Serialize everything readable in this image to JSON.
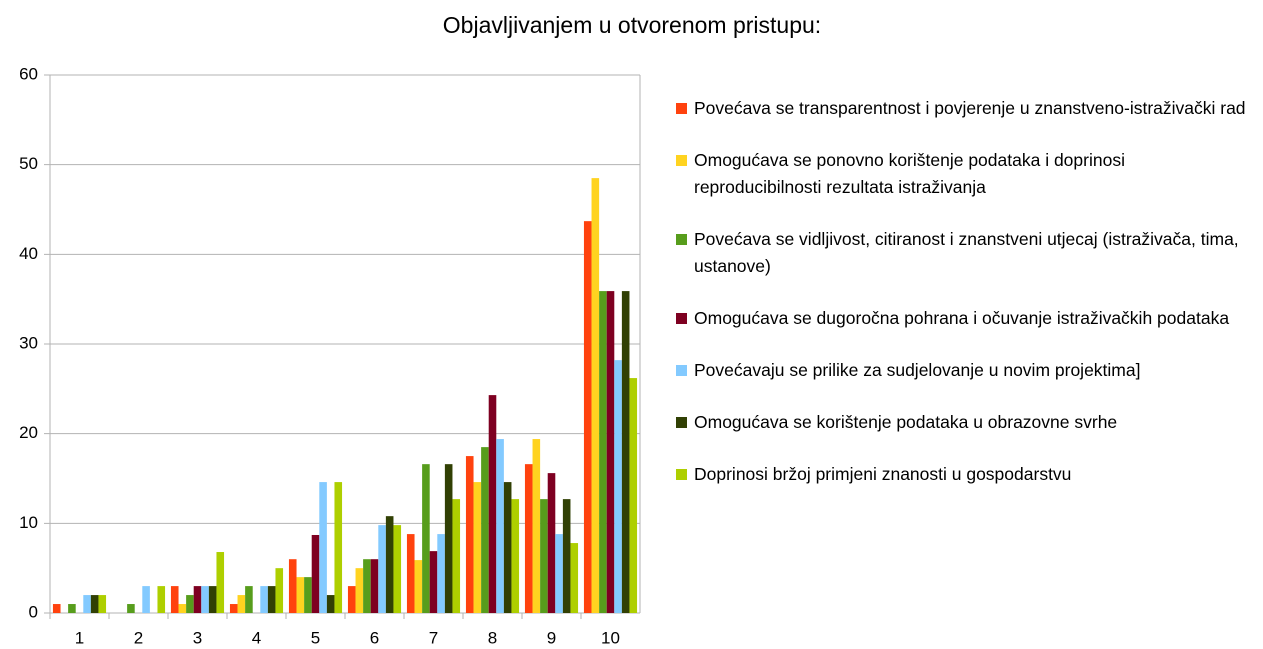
{
  "chart_data": {
    "type": "bar",
    "title": "Objavljivanjem u otvorenom pristupu:",
    "categories": [
      "1",
      "2",
      "3",
      "4",
      "5",
      "6",
      "7",
      "8",
      "9",
      "10"
    ],
    "ylim": [
      0,
      60
    ],
    "yticks": [
      0,
      10,
      20,
      30,
      40,
      50,
      60
    ],
    "grid": true,
    "legend": "right",
    "series": [
      {
        "name": "Povećava se transparentnost i povjerenje u znanstveno-istraživački rad",
        "color": "#ff420e",
        "values": [
          1,
          0,
          3,
          1,
          6,
          3,
          8.8,
          17.5,
          16.6,
          43.7
        ]
      },
      {
        "name": "Omogućava se ponovno korištenje podataka i doprinosi reproducibilnosti rezultata istraživanja",
        "color": "#ffd320",
        "values": [
          0,
          0,
          1,
          2,
          4,
          5,
          5.9,
          14.6,
          19.4,
          48.5
        ]
      },
      {
        "name": "Povećava se vidljivost, citiranost i znanstveni utjecaj (istraživača, tima, ustanove)",
        "color": "#579d1c",
        "values": [
          1,
          1,
          2,
          3,
          4,
          6,
          16.6,
          18.5,
          12.7,
          35.9
        ]
      },
      {
        "name": "Omogućava se dugoročna pohrana i očuvanje istraživačkih podataka",
        "color": "#7e0021",
        "values": [
          0,
          0,
          3,
          0,
          8.7,
          6,
          6.9,
          24.3,
          15.6,
          35.9
        ]
      },
      {
        "name": "Povećavaju se prilike za sudjelovanje u novim projektima]",
        "color": "#83caff",
        "values": [
          2,
          3,
          3,
          3,
          14.6,
          9.8,
          8.8,
          19.4,
          8.8,
          28.2
        ]
      },
      {
        "name": "Omogućava se korištenje podataka u obrazovne svrhe",
        "color": "#314004",
        "values": [
          2,
          0,
          3,
          3,
          2,
          10.8,
          16.6,
          14.6,
          12.7,
          35.9
        ]
      },
      {
        "name": "Doprinosi bržoj primjeni znanosti u gospodarstvu",
        "color": "#aecf00",
        "values": [
          2,
          3,
          6.8,
          5,
          14.6,
          9.8,
          12.7,
          12.7,
          7.8,
          26.2
        ]
      }
    ]
  }
}
